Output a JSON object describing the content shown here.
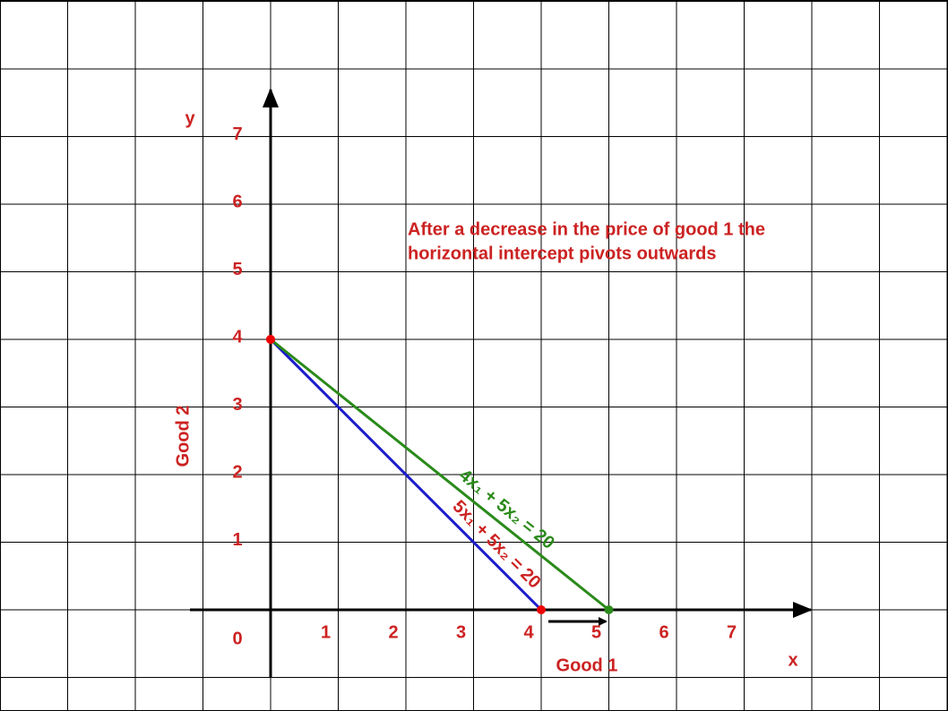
{
  "axes": {
    "x_label": "x",
    "y_label": "y",
    "x_title": "Good 1",
    "y_title": "Good 2",
    "origin_label": "0",
    "xticks": [
      1,
      2,
      3,
      4,
      5,
      6,
      7
    ],
    "yticks": [
      1,
      2,
      3,
      4,
      5,
      6,
      7
    ]
  },
  "annotation": [
    "After a decrease in the price of good 1 the",
    "horizontal intercept pivots outwards"
  ],
  "lines": [
    {
      "label": "5x₁ + 5x₂ = 20",
      "label_color": "#cc2222",
      "color": "#1a1acc",
      "points": [
        [
          0,
          4
        ],
        [
          4,
          0
        ]
      ],
      "point_colors": [
        "#ee0000",
        "#ee0000"
      ]
    },
    {
      "label": "4x₁ + 5x₂ = 20",
      "label_color": "#2a8a1a",
      "color": "#2a8a1a",
      "points": [
        [
          0,
          4
        ],
        [
          5,
          0
        ]
      ],
      "point_colors": [
        "#ee0000",
        "#2a8a1a"
      ]
    }
  ]
}
